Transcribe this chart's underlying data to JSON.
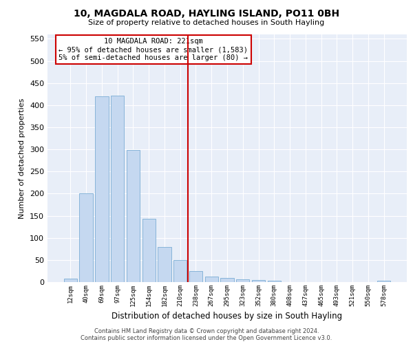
{
  "title": "10, MAGDALA ROAD, HAYLING ISLAND, PO11 0BH",
  "subtitle": "Size of property relative to detached houses in South Hayling",
  "xlabel": "Distribution of detached houses by size in South Hayling",
  "ylabel": "Number of detached properties",
  "bar_color": "#c5d8f0",
  "bar_edge_color": "#7aadd4",
  "vline_color": "#cc0000",
  "vline_x": 7.5,
  "categories": [
    "12sqm",
    "40sqm",
    "69sqm",
    "97sqm",
    "125sqm",
    "154sqm",
    "182sqm",
    "210sqm",
    "238sqm",
    "267sqm",
    "295sqm",
    "323sqm",
    "352sqm",
    "380sqm",
    "408sqm",
    "437sqm",
    "465sqm",
    "493sqm",
    "521sqm",
    "550sqm",
    "578sqm"
  ],
  "values": [
    8,
    200,
    420,
    422,
    299,
    143,
    79,
    50,
    25,
    12,
    9,
    7,
    5,
    3,
    0,
    0,
    0,
    0,
    0,
    0,
    3
  ],
  "ylim": [
    0,
    560
  ],
  "yticks": [
    0,
    50,
    100,
    150,
    200,
    250,
    300,
    350,
    400,
    450,
    500,
    550
  ],
  "annotation_text": "10 MAGDALA ROAD: 221sqm\n← 95% of detached houses are smaller (1,583)\n5% of semi-detached houses are larger (80) →",
  "annotation_box_color": "#ffffff",
  "annotation_box_edge_color": "#cc0000",
  "footer_line1": "Contains HM Land Registry data © Crown copyright and database right 2024.",
  "footer_line2": "Contains public sector information licensed under the Open Government Licence v3.0.",
  "background_color": "#e8eef8",
  "grid_color": "#ffffff",
  "fig_bg_color": "#ffffff"
}
